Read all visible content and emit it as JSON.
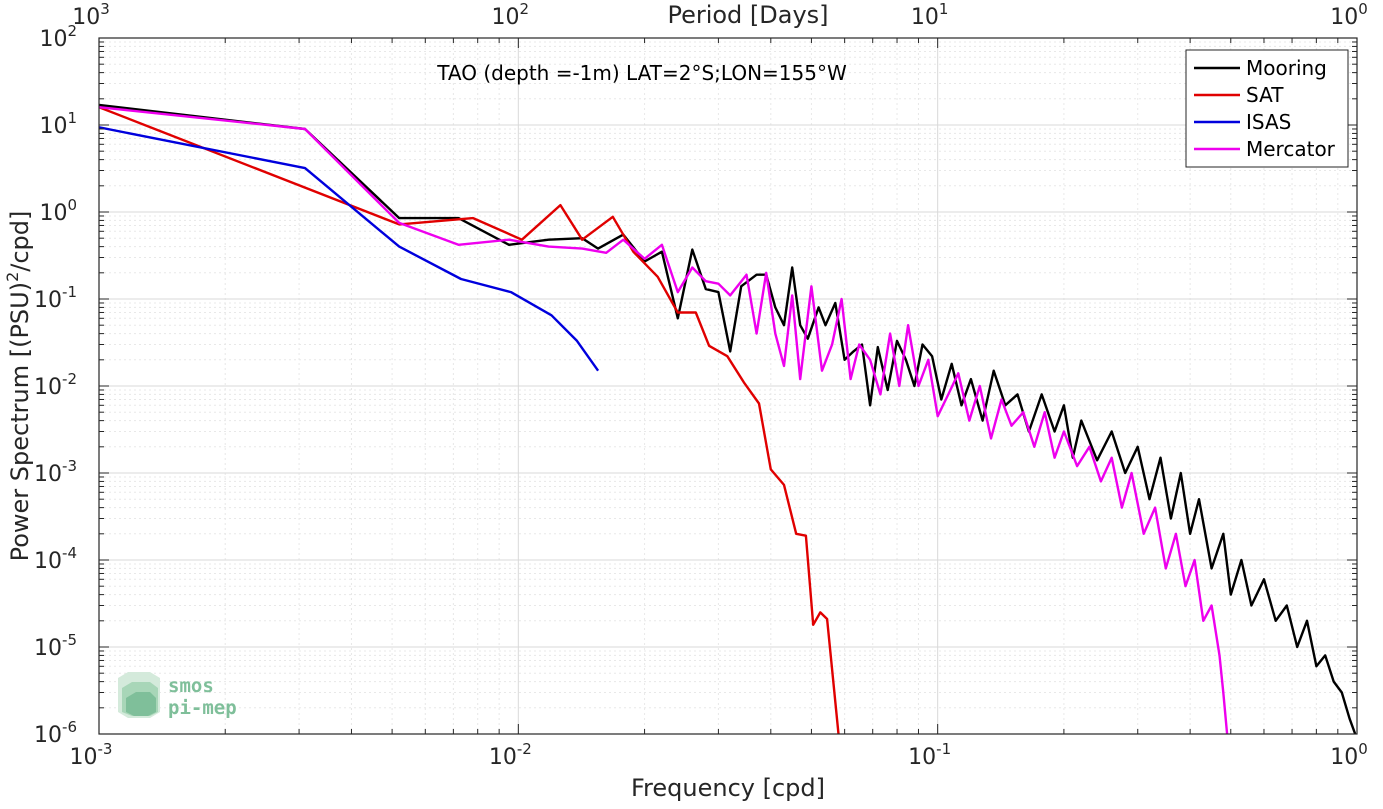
{
  "chart_data": {
    "type": "line",
    "title": "TAO (depth =-1m) LAT=2°S;LON=155°W",
    "xlabel": "Frequency [cpd]",
    "ylabel": "Power Spectrum [(PSU)^2/cpd]",
    "top_xlabel": "Period [Days]",
    "xscale": "log",
    "yscale": "log",
    "xlim": [
      0.001,
      1
    ],
    "ylim": [
      1e-06,
      100
    ],
    "grid": true,
    "legend_position": "top-right",
    "x_ticks": [
      {
        "base": "10",
        "exp": "-3"
      },
      {
        "base": "10",
        "exp": "-2"
      },
      {
        "base": "10",
        "exp": "-1"
      },
      {
        "base": "10",
        "exp": "0"
      }
    ],
    "y_ticks": [
      {
        "base": "10",
        "exp": "-6"
      },
      {
        "base": "10",
        "exp": "-5"
      },
      {
        "base": "10",
        "exp": "-4"
      },
      {
        "base": "10",
        "exp": "-3"
      },
      {
        "base": "10",
        "exp": "-2"
      },
      {
        "base": "10",
        "exp": "-1"
      },
      {
        "base": "10",
        "exp": "0"
      },
      {
        "base": "10",
        "exp": "1"
      },
      {
        "base": "10",
        "exp": "2"
      }
    ],
    "top_ticks": [
      {
        "base": "10",
        "exp": "3"
      },
      {
        "base": "10",
        "exp": "2"
      },
      {
        "base": "10",
        "exp": "1"
      },
      {
        "base": "10",
        "exp": "0"
      }
    ],
    "series": [
      {
        "name": "Mooring",
        "color": "#000000",
        "points": [
          [
            0.001,
            17
          ],
          [
            0.0031,
            9
          ],
          [
            0.0052,
            0.85
          ],
          [
            0.0072,
            0.85
          ],
          [
            0.0095,
            0.42
          ],
          [
            0.0118,
            0.48
          ],
          [
            0.0142,
            0.5
          ],
          [
            0.0155,
            0.38
          ],
          [
            0.0178,
            0.55
          ],
          [
            0.02,
            0.27
          ],
          [
            0.022,
            0.35
          ],
          [
            0.024,
            0.06
          ],
          [
            0.026,
            0.37
          ],
          [
            0.028,
            0.13
          ],
          [
            0.03,
            0.12
          ],
          [
            0.032,
            0.025
          ],
          [
            0.034,
            0.14
          ],
          [
            0.037,
            0.19
          ],
          [
            0.039,
            0.19
          ],
          [
            0.041,
            0.08
          ],
          [
            0.043,
            0.05
          ],
          [
            0.045,
            0.23
          ],
          [
            0.047,
            0.05
          ],
          [
            0.049,
            0.035
          ],
          [
            0.052,
            0.08
          ],
          [
            0.054,
            0.05
          ],
          [
            0.057,
            0.09
          ],
          [
            0.06,
            0.02
          ],
          [
            0.063,
            0.025
          ],
          [
            0.066,
            0.03
          ],
          [
            0.069,
            0.006
          ],
          [
            0.072,
            0.028
          ],
          [
            0.076,
            0.009
          ],
          [
            0.08,
            0.033
          ],
          [
            0.084,
            0.02
          ],
          [
            0.088,
            0.01
          ],
          [
            0.092,
            0.03
          ],
          [
            0.097,
            0.022
          ],
          [
            0.102,
            0.007
          ],
          [
            0.108,
            0.018
          ],
          [
            0.114,
            0.006
          ],
          [
            0.12,
            0.012
          ],
          [
            0.128,
            0.004
          ],
          [
            0.136,
            0.015
          ],
          [
            0.145,
            0.006
          ],
          [
            0.155,
            0.008
          ],
          [
            0.165,
            0.003
          ],
          [
            0.177,
            0.008
          ],
          [
            0.19,
            0.003
          ],
          [
            0.2,
            0.006
          ],
          [
            0.21,
            0.0015
          ],
          [
            0.22,
            0.004
          ],
          [
            0.24,
            0.0014
          ],
          [
            0.26,
            0.003
          ],
          [
            0.28,
            0.001
          ],
          [
            0.3,
            0.002
          ],
          [
            0.32,
            0.0005
          ],
          [
            0.34,
            0.0015
          ],
          [
            0.36,
            0.0003
          ],
          [
            0.38,
            0.001
          ],
          [
            0.4,
            0.0002
          ],
          [
            0.42,
            0.0005
          ],
          [
            0.45,
            8e-05
          ],
          [
            0.48,
            0.0002
          ],
          [
            0.5,
            4e-05
          ],
          [
            0.53,
            0.0001
          ],
          [
            0.56,
            3e-05
          ],
          [
            0.6,
            6e-05
          ],
          [
            0.64,
            2e-05
          ],
          [
            0.68,
            3e-05
          ],
          [
            0.72,
            1e-05
          ],
          [
            0.76,
            2e-05
          ],
          [
            0.8,
            6e-06
          ],
          [
            0.84,
            8e-06
          ],
          [
            0.88,
            4e-06
          ],
          [
            0.92,
            3e-06
          ],
          [
            0.96,
            1.5e-06
          ],
          [
            0.99,
            1e-06
          ]
        ]
      },
      {
        "name": "SAT",
        "color": "#e00000",
        "points": [
          [
            0.001,
            16
          ],
          [
            0.0052,
            0.72
          ],
          [
            0.0078,
            0.85
          ],
          [
            0.0102,
            0.48
          ],
          [
            0.0126,
            1.2
          ],
          [
            0.0142,
            0.48
          ],
          [
            0.0168,
            0.88
          ],
          [
            0.0188,
            0.35
          ],
          [
            0.0215,
            0.18
          ],
          [
            0.024,
            0.07
          ],
          [
            0.0265,
            0.07
          ],
          [
            0.0285,
            0.029
          ],
          [
            0.0315,
            0.022
          ],
          [
            0.0345,
            0.011
          ],
          [
            0.0375,
            0.0063
          ],
          [
            0.04,
            0.0011
          ],
          [
            0.043,
            0.00073
          ],
          [
            0.046,
            0.0002
          ],
          [
            0.0485,
            0.00019
          ],
          [
            0.0505,
            1.8e-05
          ],
          [
            0.0525,
            2.5e-05
          ],
          [
            0.0545,
            2.1e-05
          ],
          [
            0.058,
            1e-06
          ]
        ]
      },
      {
        "name": "ISAS",
        "color": "#0000dd",
        "points": [
          [
            0.001,
            9.4
          ],
          [
            0.0031,
            3.2
          ],
          [
            0.0052,
            0.4
          ],
          [
            0.0073,
            0.17
          ],
          [
            0.0096,
            0.12
          ],
          [
            0.012,
            0.065
          ],
          [
            0.0138,
            0.033
          ],
          [
            0.0155,
            0.015
          ]
        ]
      },
      {
        "name": "Mercator",
        "color": "#ee00ee",
        "points": [
          [
            0.001,
            16
          ],
          [
            0.0031,
            9
          ],
          [
            0.0052,
            0.75
          ],
          [
            0.0072,
            0.42
          ],
          [
            0.0095,
            0.48
          ],
          [
            0.0118,
            0.4
          ],
          [
            0.0142,
            0.38
          ],
          [
            0.0162,
            0.34
          ],
          [
            0.0178,
            0.48
          ],
          [
            0.02,
            0.29
          ],
          [
            0.022,
            0.42
          ],
          [
            0.024,
            0.12
          ],
          [
            0.026,
            0.23
          ],
          [
            0.028,
            0.16
          ],
          [
            0.03,
            0.15
          ],
          [
            0.032,
            0.11
          ],
          [
            0.035,
            0.19
          ],
          [
            0.037,
            0.04
          ],
          [
            0.039,
            0.2
          ],
          [
            0.041,
            0.04
          ],
          [
            0.043,
            0.017
          ],
          [
            0.045,
            0.11
          ],
          [
            0.047,
            0.012
          ],
          [
            0.05,
            0.14
          ],
          [
            0.053,
            0.015
          ],
          [
            0.056,
            0.03
          ],
          [
            0.059,
            0.1
          ],
          [
            0.062,
            0.012
          ],
          [
            0.065,
            0.03
          ],
          [
            0.069,
            0.02
          ],
          [
            0.073,
            0.008
          ],
          [
            0.077,
            0.04
          ],
          [
            0.081,
            0.01
          ],
          [
            0.085,
            0.05
          ],
          [
            0.09,
            0.01
          ],
          [
            0.095,
            0.02
          ],
          [
            0.1,
            0.0045
          ],
          [
            0.106,
            0.008
          ],
          [
            0.112,
            0.014
          ],
          [
            0.119,
            0.004
          ],
          [
            0.126,
            0.01
          ],
          [
            0.134,
            0.0025
          ],
          [
            0.142,
            0.007
          ],
          [
            0.15,
            0.0035
          ],
          [
            0.16,
            0.005
          ],
          [
            0.17,
            0.002
          ],
          [
            0.18,
            0.005
          ],
          [
            0.19,
            0.0015
          ],
          [
            0.2,
            0.003
          ],
          [
            0.215,
            0.0012
          ],
          [
            0.23,
            0.002
          ],
          [
            0.245,
            0.0008
          ],
          [
            0.26,
            0.0015
          ],
          [
            0.275,
            0.0004
          ],
          [
            0.29,
            0.001
          ],
          [
            0.31,
            0.0002
          ],
          [
            0.33,
            0.0004
          ],
          [
            0.35,
            8e-05
          ],
          [
            0.37,
            0.0002
          ],
          [
            0.39,
            5e-05
          ],
          [
            0.41,
            0.0001
          ],
          [
            0.43,
            2e-05
          ],
          [
            0.45,
            3e-05
          ],
          [
            0.47,
            8e-06
          ],
          [
            0.48,
            3e-06
          ],
          [
            0.49,
            1e-06
          ]
        ]
      }
    ]
  },
  "logo": {
    "line1": "smos",
    "line2": "pi-mep"
  }
}
